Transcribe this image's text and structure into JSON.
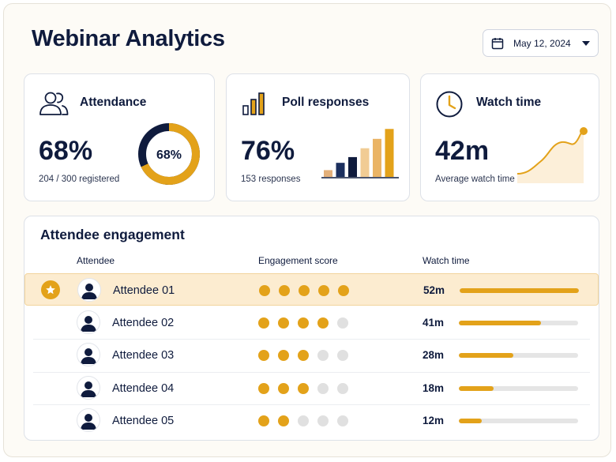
{
  "header": {
    "title": "Webinar Analytics",
    "date_label": "May 12, 2024"
  },
  "cards": {
    "attendance": {
      "title": "Attendance",
      "value": "68%",
      "donut_label": "68%",
      "subtitle": "204 / 300 registered",
      "percent": 68
    },
    "poll": {
      "title": "Poll responses",
      "value": "76%",
      "subtitle": "153 responses",
      "bar_levels": [
        0.13,
        0.27,
        0.38,
        0.55,
        0.73,
        0.92
      ],
      "bar_colors": [
        "#e3b07a",
        "#1b2f5e",
        "#0f1b3d",
        "#f1cc94",
        "#eab465",
        "#e3a21a"
      ]
    },
    "watch": {
      "title": "Watch time",
      "value": "42m",
      "subtitle": "Average watch time"
    }
  },
  "engagement": {
    "title": "Attendee engagement",
    "columns": {
      "attendee": "Attendee",
      "score": "Engagement score",
      "watch": "Watch time"
    },
    "rows": [
      {
        "name": "Attendee 01",
        "score": 5,
        "watch": "52m",
        "progress": 1.0,
        "highlight": true
      },
      {
        "name": "Attendee 02",
        "score": 4,
        "watch": "41m",
        "progress": 0.69,
        "highlight": false
      },
      {
        "name": "Attendee 03",
        "score": 3,
        "watch": "28m",
        "progress": 0.46,
        "highlight": false
      },
      {
        "name": "Attendee 04",
        "score": 3,
        "watch": "18m",
        "progress": 0.29,
        "highlight": false
      },
      {
        "name": "Attendee 05",
        "score": 2,
        "watch": "12m",
        "progress": 0.19,
        "highlight": false
      }
    ]
  },
  "icons": {
    "attendance": "users-icon",
    "poll": "bar-chart-icon",
    "watch": "clock-icon",
    "date": "calendar-icon",
    "caret": "chevron-down-icon",
    "top": "star-icon",
    "avatar": "user-avatar-icon"
  },
  "colors": {
    "accent": "#e3a21a",
    "navy": "#0f1b3d",
    "highlight_bg": "#fcecd0",
    "track": "#e5e5e5"
  }
}
